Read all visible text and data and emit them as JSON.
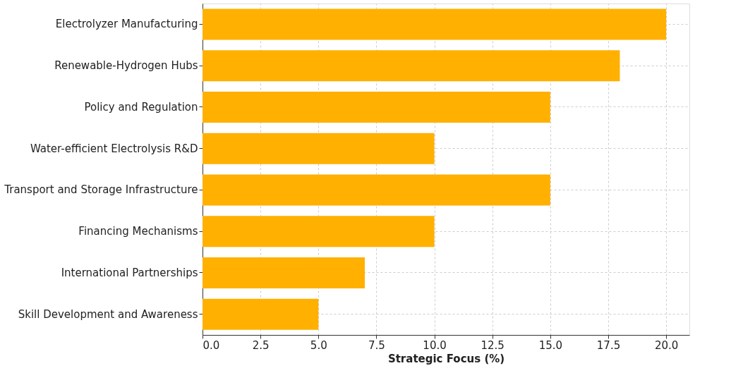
{
  "chart_data": {
    "type": "bar",
    "orientation": "horizontal",
    "xlabel": "Strategic Focus (%)",
    "categories": [
      "Electrolyzer Manufacturing",
      "Renewable-Hydrogen Hubs",
      "Policy and Regulation",
      "Water-efficient Electrolysis R&D",
      "Transport and Storage Infrastructure",
      "Financing Mechanisms",
      "International Partnerships",
      "Skill Development and Awareness"
    ],
    "values": [
      20,
      18,
      15,
      10,
      15,
      10,
      7,
      5
    ],
    "color": "#ffb000",
    "xlim": [
      0,
      21
    ],
    "xticks": [
      {
        "value": 0,
        "label": "0.0"
      },
      {
        "value": 2.5,
        "label": "2.5"
      },
      {
        "value": 5,
        "label": "5.0"
      },
      {
        "value": 7.5,
        "label": "7.5"
      },
      {
        "value": 10,
        "label": "10.0"
      },
      {
        "value": 12.5,
        "label": "12.5"
      },
      {
        "value": 15,
        "label": "15.0"
      },
      {
        "value": 17.5,
        "label": "17.5"
      },
      {
        "value": 20,
        "label": "20.0"
      }
    ],
    "grid": true
  }
}
